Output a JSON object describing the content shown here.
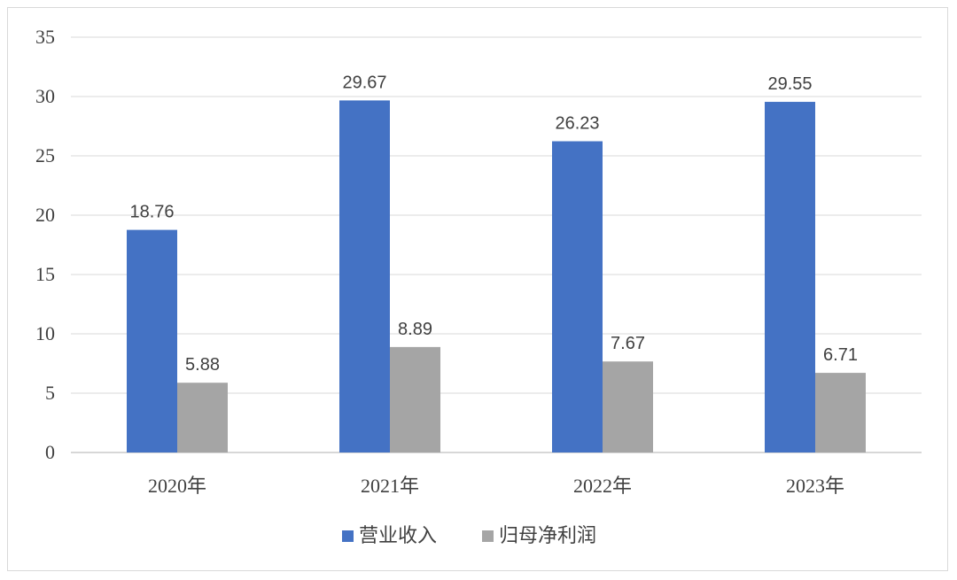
{
  "chart_data": {
    "type": "bar",
    "categories": [
      "2020年",
      "2021年",
      "2022年",
      "2023年"
    ],
    "series": [
      {
        "name": "营业收入",
        "values": [
          18.76,
          29.67,
          26.23,
          29.55
        ],
        "color": "#4472C4"
      },
      {
        "name": "归母净利润",
        "values": [
          5.88,
          8.89,
          7.67,
          6.71
        ],
        "color": "#A5A5A5"
      }
    ],
    "data_labels": [
      [
        "18.76",
        "29.67",
        "26.23",
        "29.55"
      ],
      [
        "5.88",
        "8.89",
        "7.67",
        "6.71"
      ]
    ],
    "yticks": [
      0,
      5,
      10,
      15,
      20,
      25,
      30,
      35
    ],
    "ylim": [
      0,
      35
    ],
    "grid": true,
    "legend_position": "bottom"
  }
}
